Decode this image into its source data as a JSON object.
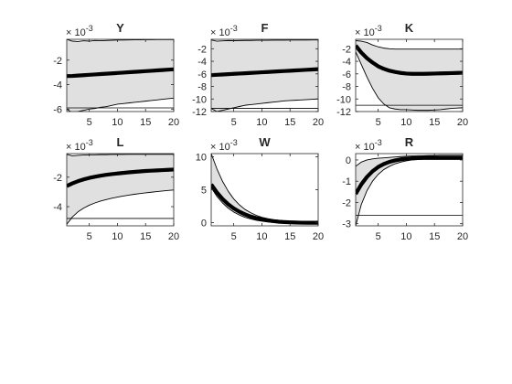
{
  "chart_data": [
    {
      "type": "area",
      "title": "Y",
      "scale_label": "× 10-3",
      "scale_base": "× 10",
      "scale_exp": "-3",
      "xlim": [
        1,
        20
      ],
      "ylim": [
        -6.2,
        -0.3
      ],
      "xticks": [
        5,
        10,
        15,
        20
      ],
      "yticks": [
        -2,
        -4,
        -6
      ],
      "ytick_labels": [
        "-2",
        "-4",
        "-6"
      ],
      "grid": false,
      "x": [
        1,
        2,
        3,
        4,
        5,
        6,
        7,
        8,
        9,
        10,
        11,
        12,
        13,
        14,
        15,
        16,
        17,
        18,
        19,
        20
      ],
      "series": [
        {
          "role": "median",
          "values": [
            -3.3,
            -3.29,
            -3.26,
            -3.23,
            -3.2,
            -3.17,
            -3.14,
            -3.11,
            -3.08,
            -3.05,
            -3.02,
            -2.99,
            -2.96,
            -2.93,
            -2.9,
            -2.87,
            -2.84,
            -2.81,
            -2.78,
            -2.75
          ]
        },
        {
          "role": "upper",
          "values": [
            -0.3,
            -0.45,
            -0.48,
            -0.42,
            -0.45,
            -0.4,
            -0.42,
            -0.4,
            -0.38,
            -0.36,
            -0.36,
            -0.35,
            -0.34,
            -0.34,
            -0.33,
            -0.33,
            -0.32,
            -0.32,
            -0.32,
            -0.32
          ]
        },
        {
          "role": "lower",
          "values": [
            -6.0,
            -6.3,
            -6.2,
            -6.1,
            -6.0,
            -5.95,
            -5.85,
            -5.8,
            -5.7,
            -5.6,
            -5.55,
            -5.5,
            -5.45,
            -5.4,
            -5.35,
            -5.3,
            -5.25,
            -5.2,
            -5.15,
            -5.1
          ]
        }
      ],
      "hline": -5.9
    },
    {
      "type": "area",
      "title": "F",
      "scale_label": "× 10-3",
      "scale_base": "× 10",
      "scale_exp": "-3",
      "xlim": [
        1,
        20
      ],
      "ylim": [
        -12,
        -0.5
      ],
      "xticks": [
        5,
        10,
        15,
        20
      ],
      "yticks": [
        -2,
        -4,
        -6,
        -8,
        -10,
        -12
      ],
      "ytick_labels": [
        "-2",
        "-4",
        "-6",
        "-8",
        "-10",
        "-12"
      ],
      "grid": false,
      "x": [
        1,
        2,
        3,
        4,
        5,
        6,
        7,
        8,
        9,
        10,
        11,
        12,
        13,
        14,
        15,
        16,
        17,
        18,
        19,
        20
      ],
      "series": [
        {
          "role": "median",
          "values": [
            -6.2,
            -6.15,
            -6.1,
            -6.05,
            -6.0,
            -5.95,
            -5.9,
            -5.85,
            -5.8,
            -5.75,
            -5.7,
            -5.65,
            -5.6,
            -5.55,
            -5.5,
            -5.45,
            -5.4,
            -5.35,
            -5.3,
            -5.25
          ]
        },
        {
          "role": "upper",
          "values": [
            -0.6,
            -0.8,
            -0.75,
            -0.7,
            -0.72,
            -0.7,
            -0.68,
            -0.68,
            -0.66,
            -0.65,
            -0.65,
            -0.64,
            -0.63,
            -0.63,
            -0.62,
            -0.62,
            -0.61,
            -0.61,
            -0.6,
            -0.6
          ]
        },
        {
          "role": "lower",
          "values": [
            -11.5,
            -12.0,
            -11.8,
            -11.6,
            -11.4,
            -11.2,
            -11.0,
            -10.9,
            -10.8,
            -10.7,
            -10.6,
            -10.5,
            -10.4,
            -10.3,
            -10.25,
            -10.2,
            -10.15,
            -10.1,
            -10.05,
            -10.0
          ]
        }
      ],
      "hline": -11.5
    },
    {
      "type": "area",
      "title": "K",
      "scale_label": "× 10-3",
      "scale_base": "× 10",
      "scale_exp": "-3",
      "xlim": [
        1,
        20
      ],
      "ylim": [
        -12,
        -0.5
      ],
      "xticks": [
        5,
        10,
        15,
        20
      ],
      "yticks": [
        -2,
        -4,
        -6,
        -8,
        -10,
        -12
      ],
      "ytick_labels": [
        "-2",
        "-4",
        "-6",
        "-8",
        "-10",
        "-12"
      ],
      "grid": false,
      "x": [
        1,
        2,
        3,
        4,
        5,
        6,
        7,
        8,
        9,
        10,
        11,
        12,
        13,
        14,
        15,
        16,
        17,
        18,
        19,
        20
      ],
      "series": [
        {
          "role": "median",
          "values": [
            -1.5,
            -2.6,
            -3.5,
            -4.2,
            -4.8,
            -5.2,
            -5.5,
            -5.7,
            -5.85,
            -5.95,
            -6.0,
            -6.0,
            -6.0,
            -5.98,
            -5.95,
            -5.92,
            -5.9,
            -5.88,
            -5.85,
            -5.82
          ]
        },
        {
          "role": "upper",
          "values": [
            -0.7,
            -0.8,
            -1.0,
            -1.4,
            -1.7,
            -1.9,
            -2.0,
            -2.05,
            -2.05,
            -2.05,
            -2.05,
            -2.05,
            -2.05,
            -2.05,
            -2.05,
            -2.05,
            -2.05,
            -2.05,
            -2.05,
            -2.05
          ]
        },
        {
          "role": "lower",
          "values": [
            -2.5,
            -4.5,
            -6.5,
            -8.3,
            -9.8,
            -10.8,
            -11.4,
            -11.6,
            -11.7,
            -11.7,
            -11.75,
            -11.8,
            -11.8,
            -11.8,
            -11.75,
            -11.7,
            -11.6,
            -11.5,
            -11.45,
            -11.4
          ]
        }
      ],
      "hline": -11.0
    },
    {
      "type": "area",
      "title": "L",
      "scale_label": "× 10-3",
      "scale_base": "× 10",
      "scale_exp": "-3",
      "xlim": [
        1,
        20
      ],
      "ylim": [
        -5.3,
        -0.4
      ],
      "xticks": [
        5,
        10,
        15,
        20
      ],
      "yticks": [
        -2,
        -4
      ],
      "ytick_labels": [
        "-2",
        "-4"
      ],
      "grid": false,
      "x": [
        1,
        2,
        3,
        4,
        5,
        6,
        7,
        8,
        9,
        10,
        11,
        12,
        13,
        14,
        15,
        16,
        17,
        18,
        19,
        20
      ],
      "series": [
        {
          "role": "median",
          "values": [
            -2.6,
            -2.42,
            -2.27,
            -2.15,
            -2.05,
            -1.97,
            -1.9,
            -1.84,
            -1.79,
            -1.75,
            -1.71,
            -1.67,
            -1.64,
            -1.61,
            -1.58,
            -1.56,
            -1.54,
            -1.52,
            -1.5,
            -1.48
          ]
        },
        {
          "role": "upper",
          "values": [
            -0.45,
            -0.55,
            -0.52,
            -0.5,
            -0.48,
            -0.48,
            -0.47,
            -0.47,
            -0.46,
            -0.46,
            -0.46,
            -0.45,
            -0.45,
            -0.45,
            -0.45,
            -0.45,
            -0.45,
            -0.45,
            -0.45,
            -0.45
          ]
        },
        {
          "role": "lower",
          "values": [
            -5.2,
            -4.7,
            -4.35,
            -4.1,
            -3.9,
            -3.75,
            -3.62,
            -3.52,
            -3.43,
            -3.35,
            -3.28,
            -3.22,
            -3.16,
            -3.11,
            -3.06,
            -3.02,
            -2.98,
            -2.94,
            -2.9,
            -2.87
          ]
        }
      ],
      "hline": -4.8
    },
    {
      "type": "area",
      "title": "W",
      "scale_label": "× 10-3",
      "scale_base": "× 10",
      "scale_exp": "-3",
      "xlim": [
        1,
        20
      ],
      "ylim": [
        -0.5,
        10.5
      ],
      "xticks": [
        5,
        10,
        15,
        20
      ],
      "yticks": [
        10,
        5,
        0
      ],
      "ytick_labels": [
        "10",
        "5",
        "0"
      ],
      "grid": false,
      "x": [
        1,
        2,
        3,
        4,
        5,
        6,
        7,
        8,
        9,
        10,
        11,
        12,
        13,
        14,
        15,
        16,
        17,
        18,
        19,
        20
      ],
      "series": [
        {
          "role": "median",
          "values": [
            5.8,
            4.6,
            3.6,
            2.8,
            2.15,
            1.65,
            1.25,
            0.92,
            0.68,
            0.48,
            0.33,
            0.22,
            0.13,
            0.07,
            0.03,
            0.0,
            -0.02,
            -0.03,
            -0.03,
            -0.03
          ]
        },
        {
          "role": "upper",
          "values": [
            10.5,
            8.2,
            6.3,
            4.8,
            3.6,
            2.7,
            2.0,
            1.5,
            1.1,
            0.8,
            0.6,
            0.45,
            0.35,
            0.28,
            0.23,
            0.2,
            0.18,
            0.17,
            0.16,
            0.15
          ]
        },
        {
          "role": "lower",
          "values": [
            5.3,
            4.0,
            3.0,
            2.2,
            1.6,
            1.15,
            0.8,
            0.55,
            0.35,
            0.2,
            0.1,
            0.02,
            -0.04,
            -0.08,
            -0.1,
            -0.12,
            -0.13,
            -0.14,
            -0.15,
            -0.15
          ]
        }
      ],
      "hline": null
    },
    {
      "type": "area",
      "title": "R",
      "scale_label": "× 10-3",
      "scale_base": "× 10",
      "scale_exp": "-3",
      "xlim": [
        1,
        20
      ],
      "ylim": [
        -3.1,
        0.3
      ],
      "xticks": [
        5,
        10,
        15,
        20
      ],
      "yticks": [
        0,
        -1,
        -2,
        -3
      ],
      "ytick_labels": [
        "0",
        "-1",
        "-2",
        "-3"
      ],
      "grid": false,
      "x": [
        1,
        2,
        3,
        4,
        5,
        6,
        7,
        8,
        9,
        10,
        11,
        12,
        13,
        14,
        15,
        16,
        17,
        18,
        19,
        20
      ],
      "series": [
        {
          "role": "median",
          "values": [
            -1.6,
            -1.15,
            -0.8,
            -0.53,
            -0.33,
            -0.19,
            -0.09,
            -0.02,
            0.03,
            0.06,
            0.08,
            0.09,
            0.1,
            0.1,
            0.1,
            0.1,
            0.1,
            0.1,
            0.1,
            0.1
          ]
        },
        {
          "role": "upper",
          "values": [
            -0.3,
            -0.1,
            0.0,
            0.05,
            0.08,
            0.1,
            0.12,
            0.14,
            0.16,
            0.18,
            0.19,
            0.2,
            0.2,
            0.21,
            0.21,
            0.22,
            0.22,
            0.22,
            0.22,
            0.22
          ]
        },
        {
          "role": "lower",
          "values": [
            -3.1,
            -2.1,
            -1.45,
            -1.0,
            -0.68,
            -0.45,
            -0.3,
            -0.18,
            -0.1,
            -0.04,
            0.0,
            0.02,
            0.03,
            0.03,
            0.03,
            0.03,
            0.03,
            0.03,
            0.03,
            0.03
          ]
        }
      ],
      "hline": -2.6
    }
  ]
}
